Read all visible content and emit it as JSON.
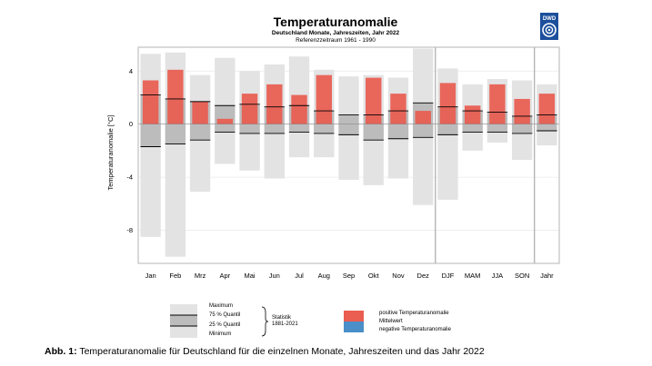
{
  "chart_data": {
    "type": "bar",
    "title": "Temperaturanomalie",
    "subtitle": "Deutschland Monate, Jahreszeiten, Jahr 2022",
    "subtitle2": "Referenzzeitraum 1961 - 1990",
    "ylabel": "Temperaturanomalie [°C]",
    "ylim": [
      -10.5,
      5.8
    ],
    "yticks": [
      4,
      0,
      -4,
      -8
    ],
    "grid": true,
    "categories": [
      "Jan",
      "Feb",
      "Mrz",
      "Apr",
      "Mai",
      "Jun",
      "Jul",
      "Aug",
      "Sep",
      "Okt",
      "Nov",
      "Dez",
      "DJF",
      "MAM",
      "JJA",
      "SON",
      "Jahr"
    ],
    "series": [
      {
        "name": "Anomalie 2022",
        "values": [
          3.3,
          4.1,
          1.7,
          0.4,
          2.3,
          3.0,
          2.2,
          3.7,
          0.0,
          3.5,
          2.3,
          1.0,
          3.1,
          1.4,
          3.0,
          1.9,
          2.3
        ]
      },
      {
        "name": "Maximum",
        "values": [
          5.3,
          5.4,
          3.7,
          5.0,
          4.0,
          4.5,
          5.1,
          4.1,
          3.6,
          3.7,
          3.5,
          5.7,
          4.2,
          3.0,
          3.4,
          3.3,
          3.0
        ]
      },
      {
        "name": "75 % Quantil",
        "values": [
          2.2,
          1.9,
          1.7,
          1.4,
          1.5,
          1.3,
          1.4,
          1.0,
          0.7,
          0.7,
          1.0,
          1.6,
          1.3,
          1.0,
          0.9,
          0.6,
          0.7
        ]
      },
      {
        "name": "25 % Quantil",
        "values": [
          -1.7,
          -1.5,
          -1.2,
          -0.6,
          -0.7,
          -0.7,
          -0.6,
          -0.7,
          -0.8,
          -1.2,
          -1.1,
          -1.0,
          -0.8,
          -0.6,
          -0.6,
          -0.7,
          -0.5
        ]
      },
      {
        "name": "Minimum",
        "values": [
          -8.5,
          -10.0,
          -5.1,
          -3.0,
          -3.5,
          -4.1,
          -2.5,
          -2.5,
          -4.2,
          -4.6,
          -4.1,
          -6.1,
          -5.7,
          -2.0,
          -1.4,
          -2.7,
          -1.6
        ]
      }
    ],
    "separators_after": [
      "Dez",
      "SON"
    ]
  },
  "legend": {
    "max_label": "Maximum",
    "q75_label": "75 % Quantil",
    "q25_label": "25 % Quantil",
    "min_label": "Minimum",
    "stat_label": "Statistik",
    "stat_period": "1881-2021",
    "positive_label": "positive Temperaturanomalie",
    "mean_label": "Mittelwert",
    "negative_label": "negative Temperaturanomalie"
  },
  "caption": {
    "prefix": "Abb. 1:",
    "text": "Temperaturanomalie für Deutschland für die einzelnen Monate, Jahreszeiten und das Jahr 2022"
  },
  "logo_text": "DWD",
  "colors": {
    "positive": "#ea5d51",
    "negative": "#4a8fc9",
    "range": "#e3e3e3",
    "iqr": "#bcbcbc",
    "grid": "#e9e9e9",
    "frame": "#b5b5b5",
    "logo": "#1d4f9c"
  }
}
